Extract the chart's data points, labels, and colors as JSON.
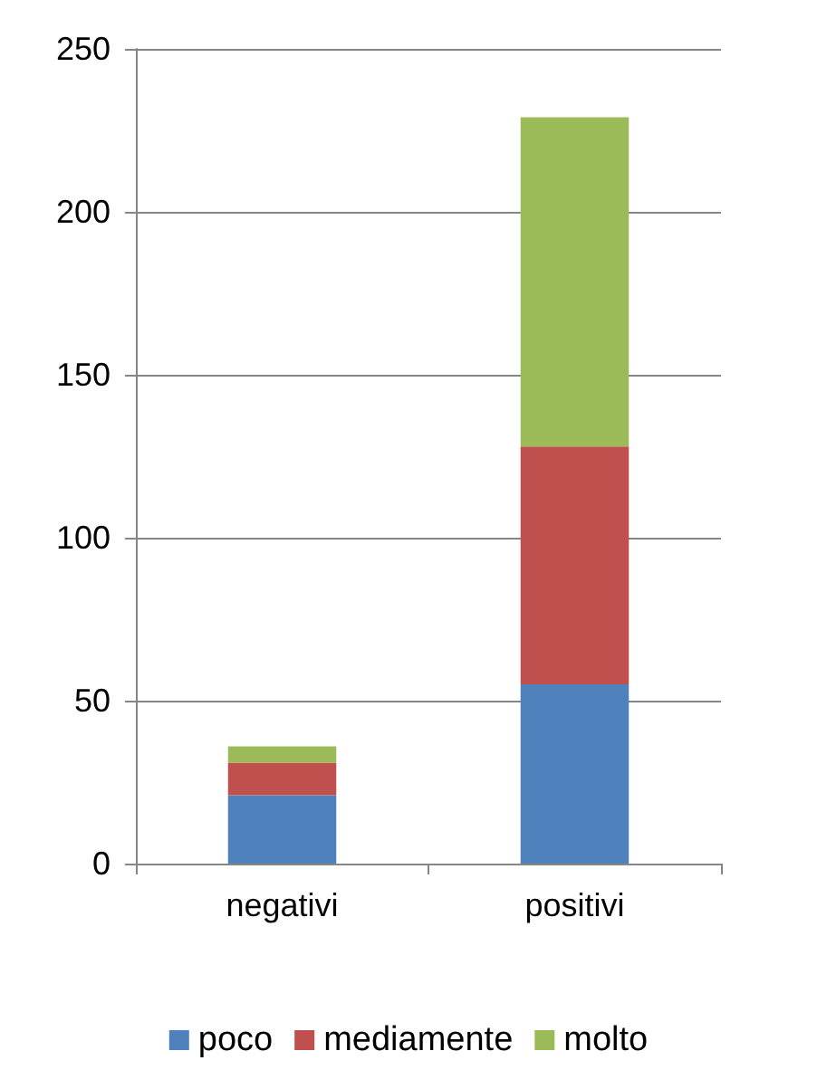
{
  "chart_data": {
    "type": "bar",
    "stacked": true,
    "categories": [
      "negativi",
      "positivi"
    ],
    "series": [
      {
        "name": "poco",
        "color": "#4f81bd",
        "values": [
          21,
          55
        ]
      },
      {
        "name": "mediamente",
        "color": "#c0504d",
        "values": [
          10,
          73
        ]
      },
      {
        "name": "molto",
        "color": "#9bbb59",
        "values": [
          5,
          101
        ]
      }
    ],
    "ylim": [
      0,
      250
    ],
    "yticks": [
      0,
      50,
      100,
      150,
      200,
      250
    ],
    "grid": "y",
    "legend": "bottom"
  }
}
